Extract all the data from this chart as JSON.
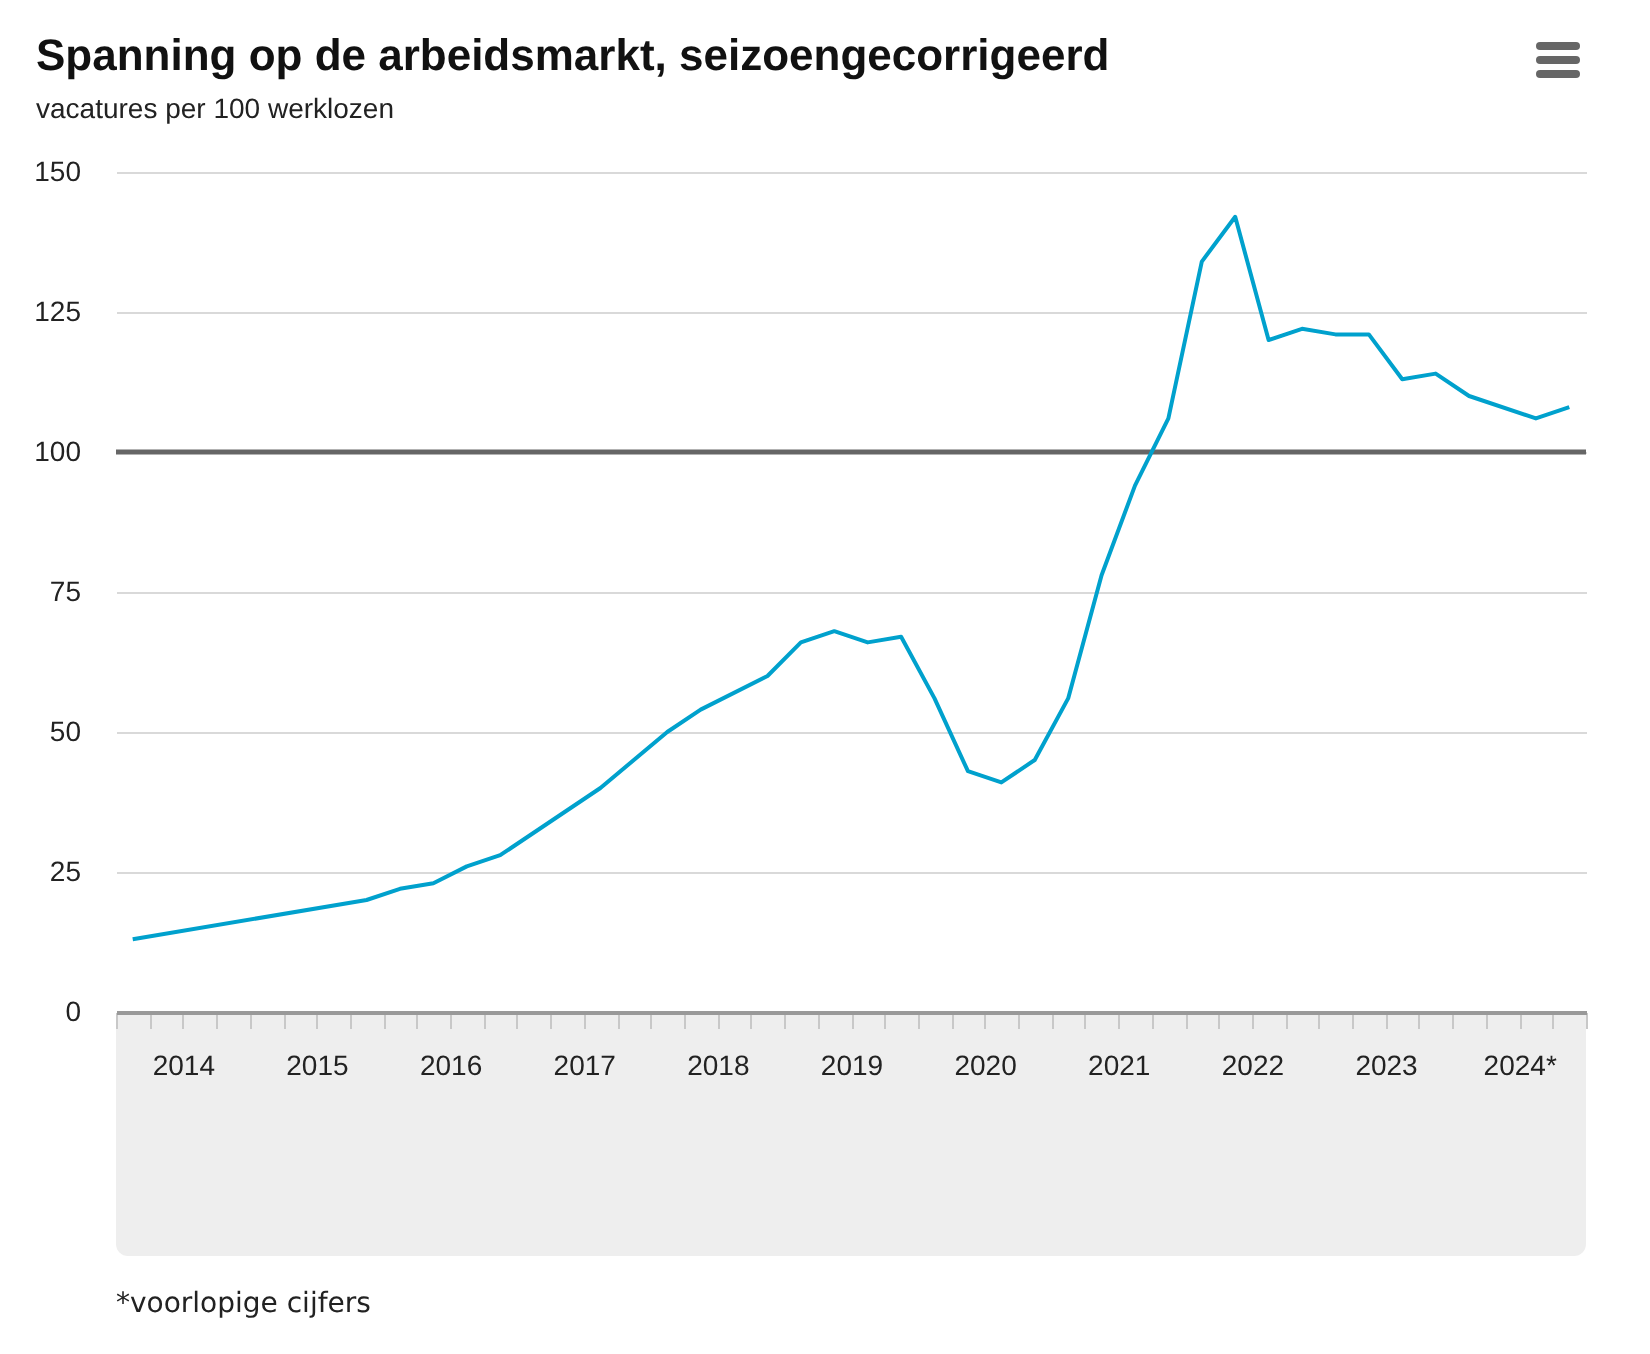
{
  "chart_data": {
    "type": "line",
    "title": "Spanning op de arbeidsmarkt, seizoengecorrigeerd",
    "subtitle": "vacatures per 100 werklozen",
    "x": [
      2014.125,
      2015.875,
      2016.125,
      2016.375,
      2016.625,
      2016.875,
      2017.625,
      2018.125,
      2018.375,
      2018.875,
      2019.125,
      2019.375,
      2019.625,
      2019.875,
      2020.125,
      2020.375,
      2020.625,
      2020.875,
      2021.125,
      2021.375,
      2021.625,
      2021.875,
      2022.125,
      2022.375,
      2022.625,
      2022.875,
      2023.125,
      2023.375,
      2023.625,
      2023.875,
      2024.125,
      2024.625,
      2024.875
    ],
    "series": [
      {
        "color": "#00a1cd",
        "values": [
          13,
          20,
          22,
          23,
          26,
          28,
          40,
          50,
          54,
          60,
          66,
          68,
          66,
          67,
          56,
          43,
          41,
          45,
          56,
          78,
          94,
          106,
          134,
          142,
          120,
          122,
          121,
          121,
          113,
          114,
          110,
          106,
          108
        ]
      }
    ],
    "xlim": [
      2014,
      2025
    ],
    "xticks": [
      {
        "value": 2014,
        "label": null
      },
      {
        "value": 2014.25,
        "label": null
      },
      {
        "value": 2014.5,
        "label": "2014"
      },
      {
        "value": 2014.75,
        "label": null
      },
      {
        "value": 2015,
        "label": null
      },
      {
        "value": 2015.25,
        "label": null
      },
      {
        "value": 2015.5,
        "label": "2015"
      },
      {
        "value": 2015.75,
        "label": null
      },
      {
        "value": 2016,
        "label": null
      },
      {
        "value": 2016.25,
        "label": null
      },
      {
        "value": 2016.5,
        "label": "2016"
      },
      {
        "value": 2016.75,
        "label": null
      },
      {
        "value": 2017,
        "label": null
      },
      {
        "value": 2017.25,
        "label": null
      },
      {
        "value": 2017.5,
        "label": "2017"
      },
      {
        "value": 2017.75,
        "label": null
      },
      {
        "value": 2018,
        "label": null
      },
      {
        "value": 2018.25,
        "label": null
      },
      {
        "value": 2018.5,
        "label": "2018"
      },
      {
        "value": 2018.75,
        "label": null
      },
      {
        "value": 2019,
        "label": null
      },
      {
        "value": 2019.25,
        "label": null
      },
      {
        "value": 2019.5,
        "label": "2019"
      },
      {
        "value": 2019.75,
        "label": null
      },
      {
        "value": 2020,
        "label": null
      },
      {
        "value": 2020.25,
        "label": null
      },
      {
        "value": 2020.5,
        "label": "2020"
      },
      {
        "value": 2020.75,
        "label": null
      },
      {
        "value": 2021,
        "label": null
      },
      {
        "value": 2021.25,
        "label": null
      },
      {
        "value": 2021.5,
        "label": "2021"
      },
      {
        "value": 2021.75,
        "label": null
      },
      {
        "value": 2022,
        "label": null
      },
      {
        "value": 2022.25,
        "label": null
      },
      {
        "value": 2022.5,
        "label": "2022"
      },
      {
        "value": 2022.75,
        "label": null
      },
      {
        "value": 2023,
        "label": null
      },
      {
        "value": 2023.25,
        "label": null
      },
      {
        "value": 2023.5,
        "label": "2023"
      },
      {
        "value": 2023.75,
        "label": null
      },
      {
        "value": 2024,
        "label": null
      },
      {
        "value": 2024.25,
        "label": null
      },
      {
        "value": 2024.5,
        "label": "2024*"
      },
      {
        "value": 2024.75,
        "label": null
      },
      {
        "value": 2025,
        "label": null
      }
    ],
    "ylim": [
      0,
      150
    ],
    "yticks": [
      0,
      25,
      50,
      75,
      100,
      125,
      150
    ],
    "grid": "y",
    "legend": false,
    "marker": "none",
    "line_style": "solid",
    "ref_lines": [
      {
        "axis": "y",
        "value": 100,
        "color": "#666666"
      }
    ],
    "annotations": [
      "*voorlopige cijfers"
    ]
  }
}
